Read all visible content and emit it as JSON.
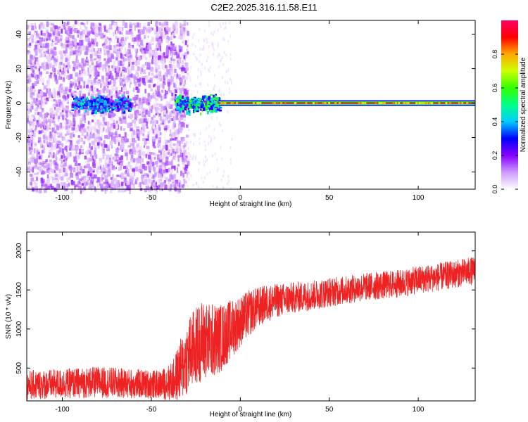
{
  "figure_title": "C2E2.2025.316.11.58.E11",
  "chart_data": [
    {
      "type": "heatmap",
      "xlabel": "Height of straight line (km)",
      "ylabel": "Frequency (Hz)",
      "xlim": [
        -120,
        132
      ],
      "ylim": [
        -50,
        48
      ],
      "xticks": [
        -100,
        -50,
        0,
        50,
        100
      ],
      "yticks": [
        -40,
        -20,
        0,
        20,
        40
      ],
      "colorbar": {
        "label": "Normalized spectral amplitude",
        "range": [
          0,
          1
        ],
        "ticks": [
          0.0,
          0.2,
          0.4,
          0.6,
          0.8
        ],
        "colors": [
          "#ffffff",
          "#cc99ff",
          "#8800ff",
          "#0000ff",
          "#00ccff",
          "#00ff88",
          "#33ff00",
          "#ccff00",
          "#ffaa00",
          "#ff0000",
          "#ff0066"
        ]
      },
      "features": [
        {
          "label": "noise floor",
          "x_range": [
            -120,
            -30
          ],
          "freq_range": [
            -50,
            48
          ],
          "amplitude": 0.1
        },
        {
          "label": "cluster",
          "x_range": [
            -95,
            -62
          ],
          "freq": 0,
          "amplitude": 0.35
        },
        {
          "label": "cluster",
          "x_range": [
            -37,
            -12
          ],
          "freq": 0,
          "amplitude": 0.45
        },
        {
          "label": "carrier line",
          "x_range": [
            -12,
            132
          ],
          "freq": 0,
          "amplitude": 0.9
        }
      ]
    },
    {
      "type": "line",
      "xlabel": "Height of straight line (km)",
      "ylabel": "SNR (10 * v/v)",
      "xlim": [
        -120,
        132
      ],
      "ylim": [
        80,
        2240
      ],
      "xticks": [
        -100,
        -50,
        0,
        50,
        100
      ],
      "yticks": [
        500,
        1000,
        1500,
        2000
      ],
      "color": "#ee2222",
      "series": [
        {
          "x": [
            -120,
            -100,
            -80,
            -60,
            -45,
            -38,
            -33,
            -28,
            -22,
            -15,
            -10,
            -5,
            0,
            5,
            10,
            15,
            20,
            30,
            40,
            50,
            60,
            70,
            80,
            90,
            100,
            110,
            120,
            132
          ],
          "y": [
            280,
            300,
            320,
            300,
            290,
            330,
            500,
            700,
            850,
            850,
            900,
            1000,
            1100,
            1200,
            1280,
            1330,
            1360,
            1400,
            1430,
            1470,
            1500,
            1540,
            1560,
            1580,
            1630,
            1660,
            1700,
            1750
          ]
        }
      ],
      "noise_amplitude": [
        190,
        190,
        200,
        190,
        180,
        260,
        420,
        500,
        520,
        480,
        430,
        380,
        330,
        300,
        260,
        240,
        220,
        200,
        190,
        190,
        180,
        180,
        180,
        180,
        180,
        180,
        180,
        180
      ]
    }
  ]
}
